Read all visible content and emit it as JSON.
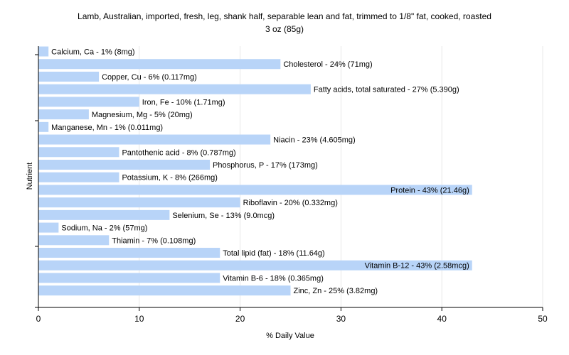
{
  "chart_data": {
    "type": "bar",
    "orientation": "horizontal",
    "title": [
      "Lamb, Australian, imported, fresh, leg, shank half, separable lean and fat, trimmed to 1/8\" fat, cooked, roasted",
      "3 oz (85g)"
    ],
    "xlabel": "% Daily Value",
    "ylabel": "Nutrient",
    "xlim": [
      0,
      50
    ],
    "xticks": [
      0,
      10,
      20,
      30,
      40,
      50
    ],
    "grid": true,
    "bar_color": "#b8d4f8",
    "categories": [
      "Calcium, Ca",
      "Cholesterol",
      "Copper, Cu",
      "Fatty acids, total saturated",
      "Iron, Fe",
      "Magnesium, Mg",
      "Manganese, Mn",
      "Niacin",
      "Pantothenic acid",
      "Phosphorus, P",
      "Potassium, K",
      "Protein",
      "Riboflavin",
      "Selenium, Se",
      "Sodium, Na",
      "Thiamin",
      "Total lipid (fat)",
      "Vitamin B-12",
      "Vitamin B-6",
      "Zinc, Zn"
    ],
    "values": [
      1,
      24,
      6,
      27,
      10,
      5,
      1,
      23,
      8,
      17,
      8,
      43,
      20,
      13,
      2,
      7,
      18,
      43,
      18,
      25
    ],
    "labels": [
      "Calcium, Ca - 1% (8mg)",
      "Cholesterol - 24% (71mg)",
      "Copper, Cu - 6% (0.117mg)",
      "Fatty acids, total saturated - 27% (5.390g)",
      "Iron, Fe - 10% (1.71mg)",
      "Magnesium, Mg - 5% (20mg)",
      "Manganese, Mn - 1% (0.011mg)",
      "Niacin - 23% (4.605mg)",
      "Pantothenic acid - 8% (0.787mg)",
      "Phosphorus, P - 17% (173mg)",
      "Potassium, K - 8% (266mg)",
      "Protein - 43% (21.46g)",
      "Riboflavin - 20% (0.332mg)",
      "Selenium, Se - 13% (9.0mcg)",
      "Sodium, Na - 2% (57mg)",
      "Thiamin - 7% (0.108mg)",
      "Total lipid (fat) - 18% (11.64g)",
      "Vitamin B-12 - 43% (2.58mcg)",
      "Vitamin B-6 - 18% (0.365mg)",
      "Zinc, Zn - 25% (3.82mg)"
    ]
  }
}
